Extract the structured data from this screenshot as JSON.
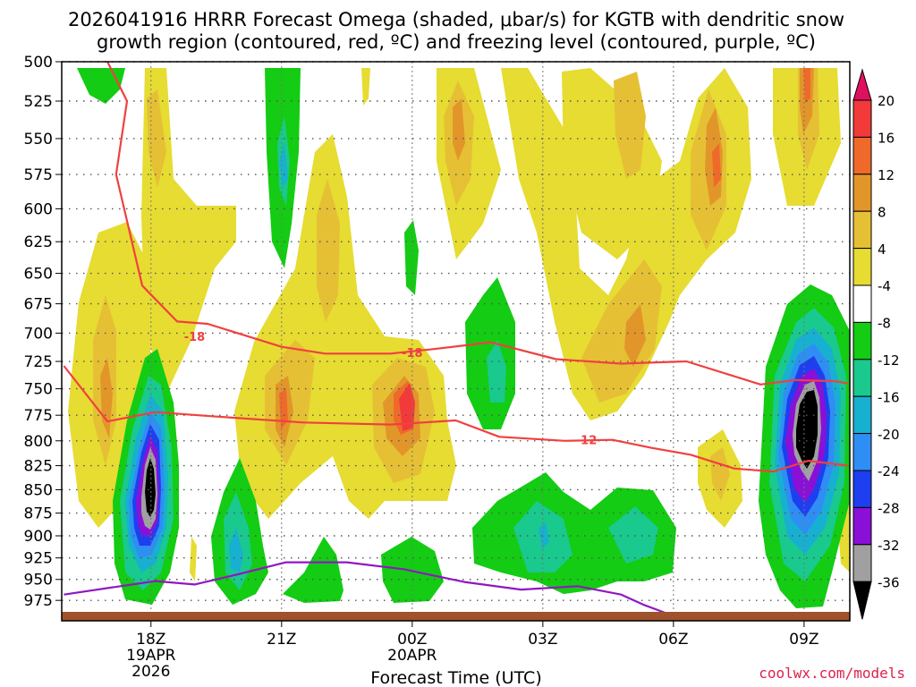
{
  "chart_data": {
    "type": "time-height contour plot",
    "title_line1": "2026041916 HRRR Forecast Omega (shaded, μbar/s) for KGTB with dendritic snow",
    "title_line2": "growth region (contoured, red, ºC) and freezing level (contoured, purple, ºC)",
    "xlabel": "Forecast Time (UTC)",
    "credit": "coolwx.com/models",
    "y_levels": [
      500,
      525,
      550,
      575,
      600,
      625,
      650,
      675,
      700,
      725,
      750,
      775,
      800,
      825,
      850,
      875,
      900,
      925,
      950,
      975
    ],
    "ylim": [
      1000,
      500
    ],
    "x_ticks": [
      {
        "hour": 2,
        "lines": [
          "18Z",
          "19APR",
          "2026"
        ]
      },
      {
        "hour": 5,
        "lines": [
          "21Z"
        ]
      },
      {
        "hour": 8,
        "lines": [
          "00Z",
          "20APR"
        ]
      },
      {
        "hour": 11,
        "lines": [
          "03Z"
        ]
      },
      {
        "hour": 14,
        "lines": [
          "06Z"
        ]
      },
      {
        "hour": 17,
        "lines": [
          "09Z"
        ]
      }
    ],
    "xlim": [
      -0.05,
      18.05
    ],
    "colorbar": {
      "labels": [
        "20",
        "16",
        "12",
        "8",
        "4",
        "-4",
        "-8",
        "-12",
        "-16",
        "-20",
        "-24",
        "-28",
        "-32",
        "-36"
      ],
      "colors": [
        "#e01060",
        "#f23a3a",
        "#ef6a2a",
        "#e2962a",
        "#e6c034",
        "#e6dc32",
        "#ffffff",
        "#13cc13",
        "#19c98d",
        "#18b0d0",
        "#2f8ef4",
        "#1e3ff0",
        "#8a10d8",
        "#a0a0a0",
        "#000000"
      ],
      "units": "μbar/s"
    },
    "contours": [
      {
        "name": "dgz-upper-minus18",
        "color": "#f04040",
        "label": "-18",
        "label_points": [
          [
            3.0,
            703
          ],
          [
            8.0,
            717
          ]
        ],
        "points": [
          [
            1.0,
            500
          ],
          [
            1.45,
            525
          ],
          [
            1.2,
            575
          ],
          [
            1.8,
            660
          ],
          [
            2.6,
            690
          ],
          [
            3.3,
            692
          ],
          [
            5.0,
            712
          ],
          [
            6.0,
            718
          ],
          [
            7.5,
            718
          ],
          [
            8.5,
            714
          ],
          [
            9.8,
            708
          ],
          [
            11.3,
            723
          ],
          [
            12.8,
            727
          ],
          [
            14.3,
            725
          ],
          [
            16.0,
            746
          ],
          [
            16.8,
            742
          ],
          [
            17.7,
            743
          ],
          [
            18.0,
            745
          ]
        ]
      },
      {
        "name": "dgz-lower-minus12",
        "color": "#f04040",
        "label": "-12",
        "label_points": [
          [
            12.0,
            799
          ]
        ],
        "points": [
          [
            0.0,
            729
          ],
          [
            1.0,
            781
          ],
          [
            2.1,
            772
          ],
          [
            3.4,
            776
          ],
          [
            5.5,
            782
          ],
          [
            7.5,
            784
          ],
          [
            9.0,
            780
          ],
          [
            10.0,
            796
          ],
          [
            11.5,
            800
          ],
          [
            12.6,
            799
          ],
          [
            13.5,
            807
          ],
          [
            14.4,
            814
          ],
          [
            15.4,
            828
          ],
          [
            16.3,
            831
          ],
          [
            17.1,
            820
          ],
          [
            18.0,
            825
          ]
        ]
      },
      {
        "name": "freezing-level-0C",
        "color": "#9018c0",
        "label": "",
        "points": [
          [
            0.0,
            968
          ],
          [
            1.3,
            958
          ],
          [
            2.1,
            952
          ],
          [
            3.0,
            956
          ],
          [
            4.0,
            944
          ],
          [
            5.1,
            930
          ],
          [
            6.5,
            930
          ],
          [
            7.8,
            938
          ],
          [
            9.2,
            953
          ],
          [
            10.5,
            962
          ],
          [
            11.8,
            958
          ],
          [
            12.8,
            968
          ],
          [
            13.3,
            980
          ],
          [
            13.8,
            990
          ],
          [
            14.0,
            993
          ]
        ]
      }
    ]
  }
}
